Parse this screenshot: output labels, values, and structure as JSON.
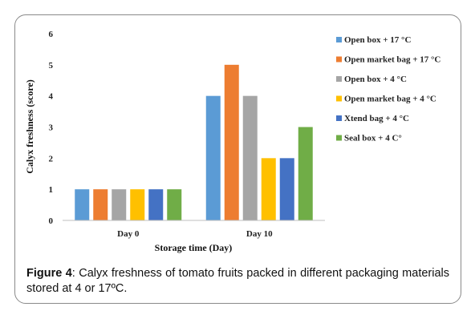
{
  "chart_data": {
    "type": "bar",
    "categories": [
      "Day 0",
      "Day 10"
    ],
    "xlabel": "Storage time (Day)",
    "ylabel": "Calyx freshness (score)",
    "ylim": [
      0,
      6
    ],
    "yticks": [
      "0",
      "1",
      "2",
      "3",
      "4",
      "5",
      "6"
    ],
    "grid": false,
    "legend_position": "right",
    "series": [
      {
        "name": "Open box + 17 °C",
        "values": [
          1,
          4
        ],
        "color": "#5b9bd5"
      },
      {
        "name": "Open market bag + 17 °C",
        "values": [
          1,
          5
        ],
        "color": "#ed7d31"
      },
      {
        "name": "Open box + 4 °C",
        "values": [
          1,
          4
        ],
        "color": "#a5a5a5"
      },
      {
        "name": "Open market bag + 4 °C",
        "values": [
          1,
          2
        ],
        "color": "#ffc000"
      },
      {
        "name": "Xtend bag + 4 °C",
        "values": [
          1,
          2
        ],
        "color": "#4472c4"
      },
      {
        "name": "Seal box + 4 C°",
        "values": [
          1,
          3
        ],
        "color": "#70ad47"
      }
    ]
  },
  "caption": {
    "label": "Figure 4",
    "text": ": Calyx freshness of tomato fruits packed in different packaging materials stored at 4 or 17ºC."
  }
}
